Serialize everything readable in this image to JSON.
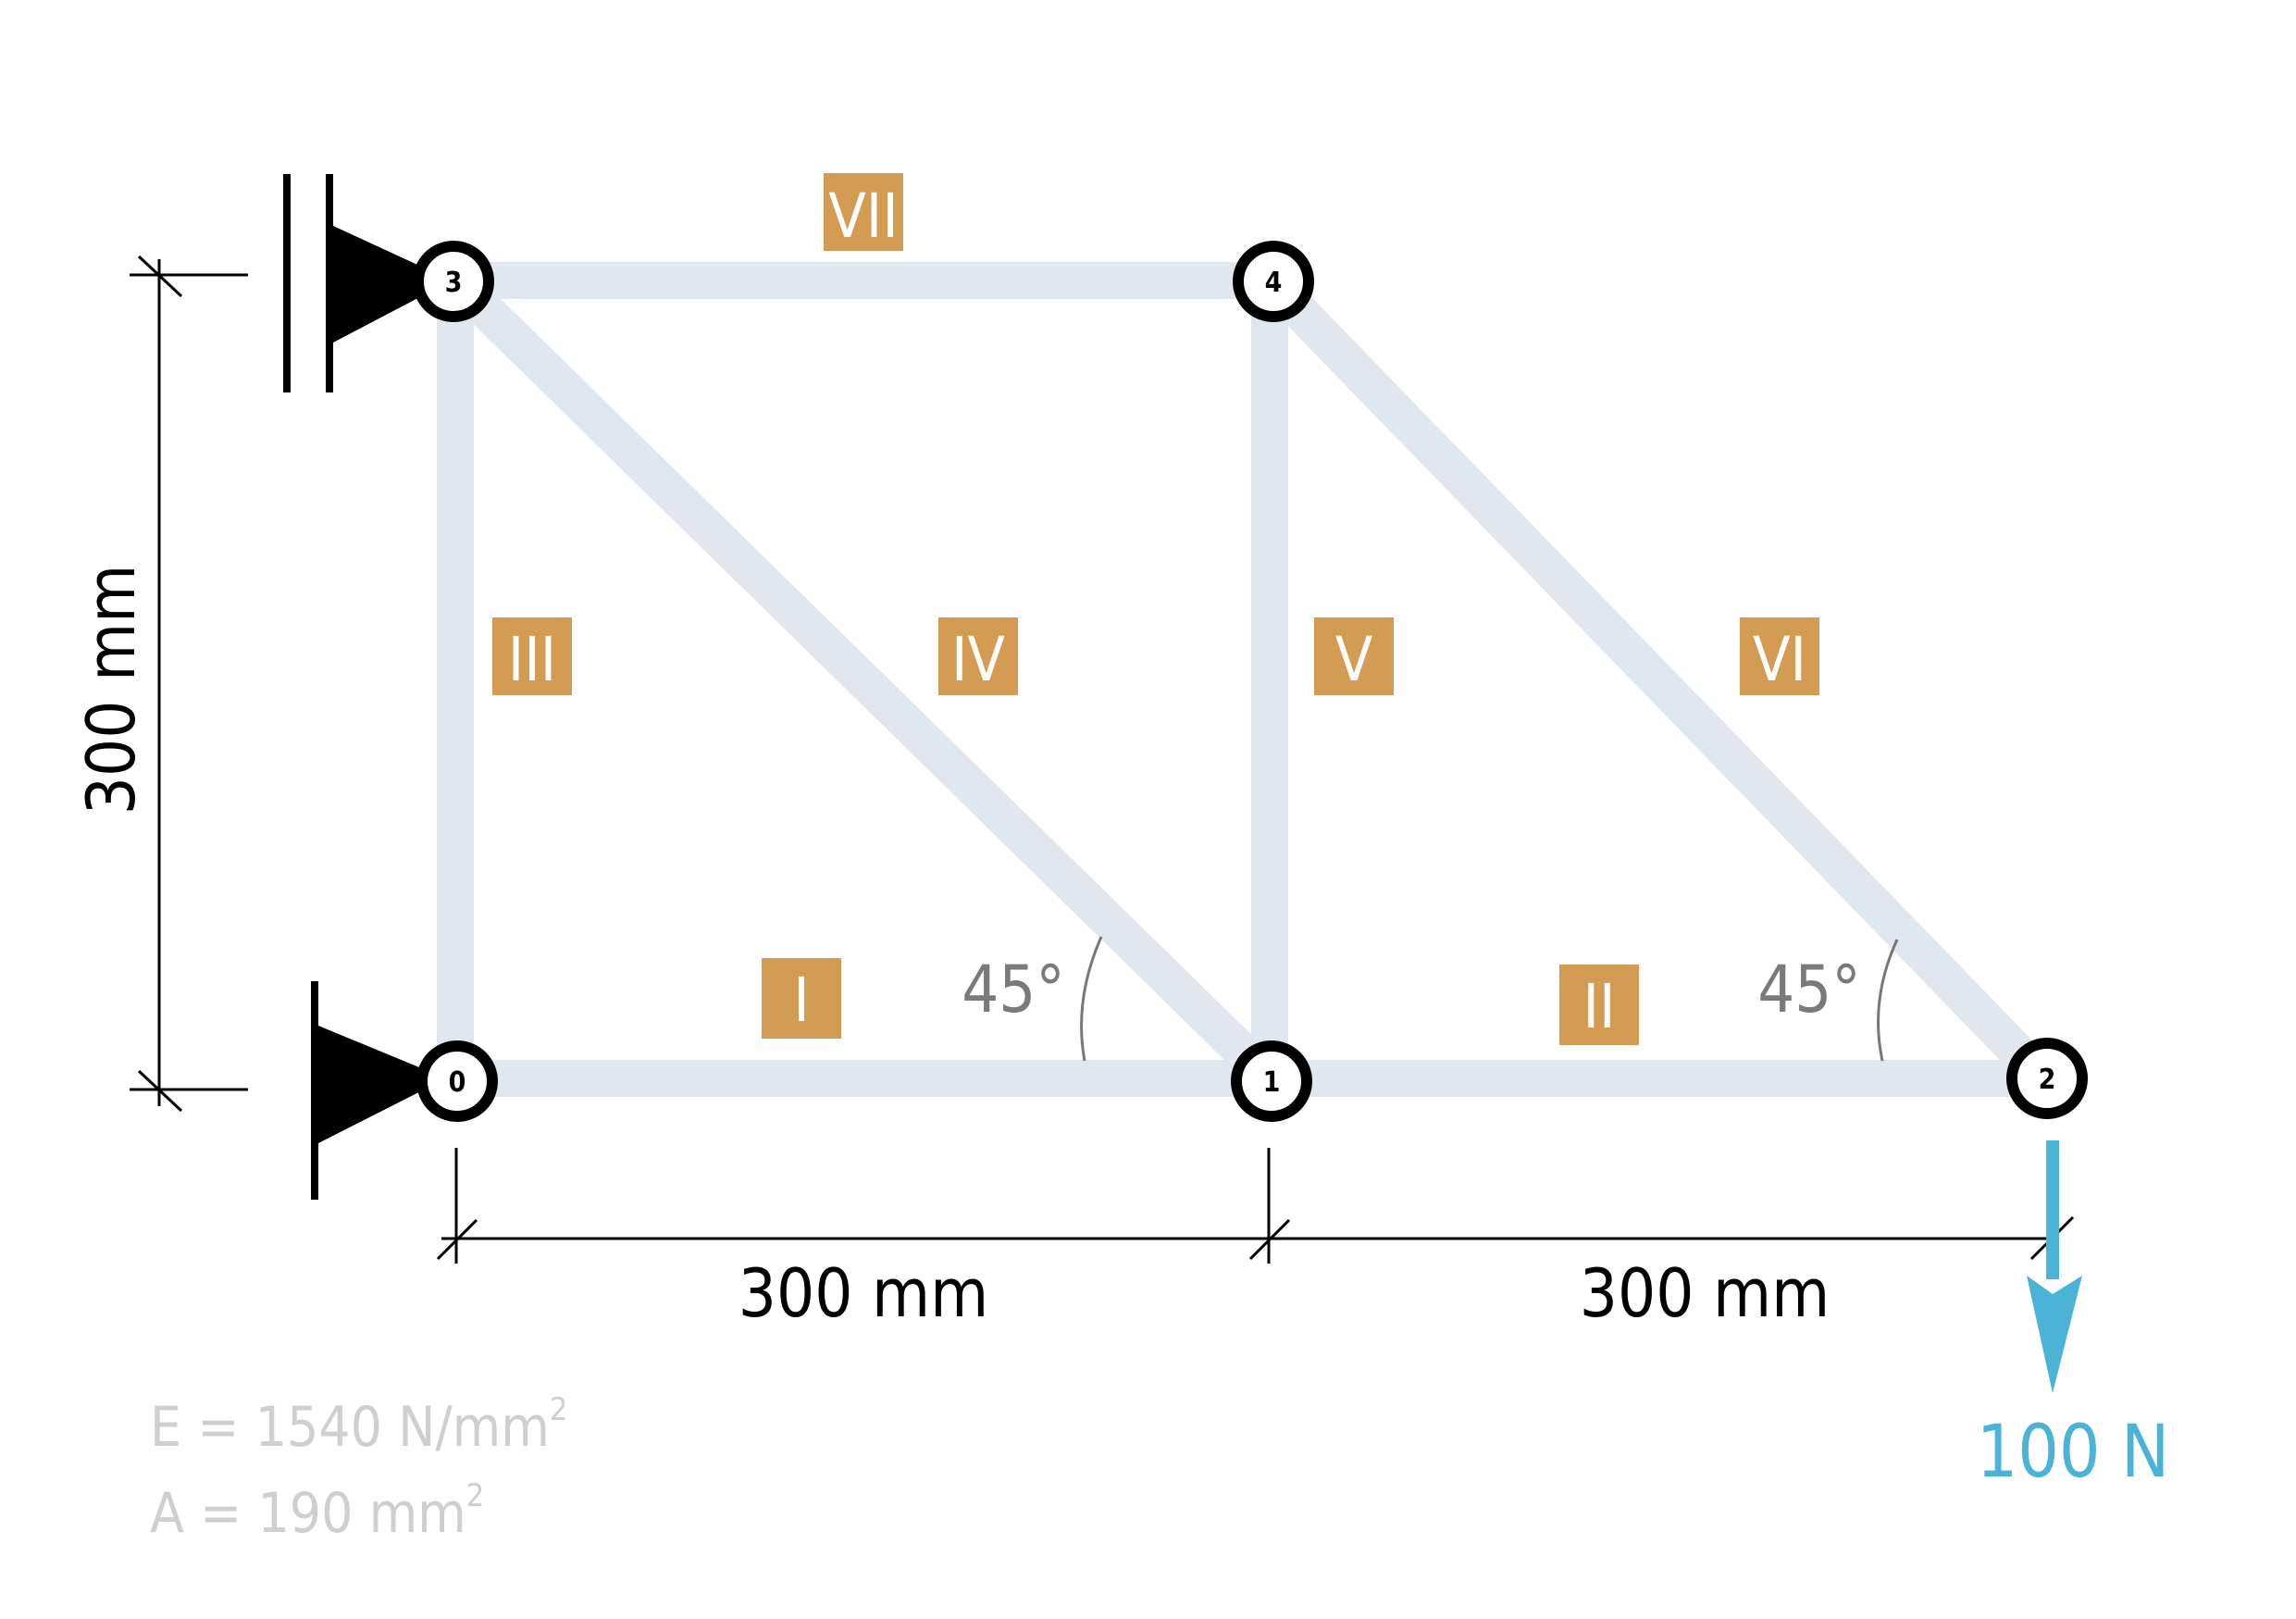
{
  "nodes": [
    {
      "id": "0",
      "label": "0"
    },
    {
      "id": "1",
      "label": "1"
    },
    {
      "id": "2",
      "label": "2"
    },
    {
      "id": "3",
      "label": "3"
    },
    {
      "id": "4",
      "label": "4"
    }
  ],
  "members": [
    {
      "label": "I",
      "from": "0",
      "to": "1"
    },
    {
      "label": "II",
      "from": "1",
      "to": "2"
    },
    {
      "label": "III",
      "from": "0",
      "to": "3"
    },
    {
      "label": "IV",
      "from": "3",
      "to": "1"
    },
    {
      "label": "V",
      "from": "1",
      "to": "4"
    },
    {
      "label": "VI",
      "from": "4",
      "to": "2"
    },
    {
      "label": "VII",
      "from": "3",
      "to": "4"
    }
  ],
  "dimensions": {
    "vertical": "300 mm",
    "horizontal_left": "300 mm",
    "horizontal_right": "300 mm"
  },
  "angles": {
    "left": "45°",
    "right": "45°"
  },
  "load": {
    "label": "100 N",
    "color": "#4ab3d6"
  },
  "properties": {
    "e_text": "E = 1540 N/mm",
    "e_sup": "2",
    "a_text": "A = 190 mm",
    "a_sup": "2"
  },
  "colors": {
    "member": "#e1e7ee",
    "member_label": "#d49b52",
    "properties_text": "#cfcfcf"
  }
}
